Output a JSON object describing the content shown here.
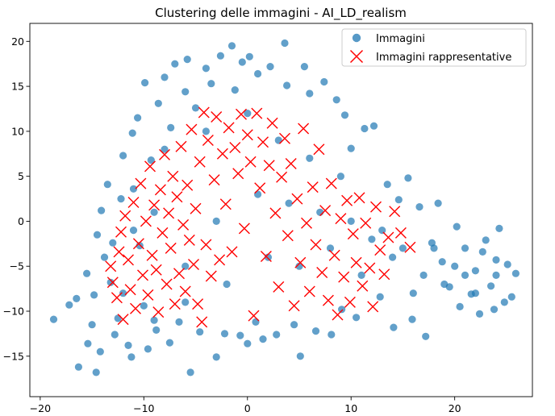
{
  "chart_data": {
    "type": "scatter",
    "title": "Clustering delle immagini - AI_LD_realism",
    "xlabel": "",
    "ylabel": "",
    "xlim": [
      -21,
      27.5
    ],
    "ylim": [
      -19.5,
      22
    ],
    "xticks": [
      -20,
      -10,
      0,
      10,
      20
    ],
    "yticks": [
      -15,
      -10,
      -5,
      0,
      5,
      10,
      15,
      20
    ],
    "grid": false,
    "legend_position": "top-right",
    "series": [
      {
        "name": "Immagini",
        "marker": "circle",
        "color": "#1f77b4",
        "description": "several thousand points in a dense arch-shaped cloud; listed points are a representative sample plus visible outliers",
        "points": [
          [
            -18.7,
            -10.9
          ],
          [
            -17.2,
            -9.3
          ],
          [
            -16.3,
            -16.2
          ],
          [
            -15.4,
            -13.6
          ],
          [
            -14.6,
            -16.8
          ],
          [
            -14.2,
            -14.5
          ],
          [
            -15,
            -11.5
          ],
          [
            -14.8,
            -8.2
          ],
          [
            -15.5,
            -5.8
          ],
          [
            -14.5,
            -1.5
          ],
          [
            -14.1,
            1.2
          ],
          [
            -13.8,
            -4
          ],
          [
            -13.5,
            4.1
          ],
          [
            -13.2,
            -6.8
          ],
          [
            -12.8,
            -12.6
          ],
          [
            -12.5,
            -10.8
          ],
          [
            -12.2,
            2.5
          ],
          [
            -12,
            7.3
          ],
          [
            -11.5,
            -13.8
          ],
          [
            -11.2,
            -15.1
          ],
          [
            -11.1,
            9.8
          ],
          [
            -11,
            3.6
          ],
          [
            -10.6,
            11.5
          ],
          [
            -10.4,
            -2.7
          ],
          [
            -10,
            -9.4
          ],
          [
            -9.9,
            15.4
          ],
          [
            -9.6,
            -14.2
          ],
          [
            -9.3,
            6.8
          ],
          [
            -8.8,
            -12.1
          ],
          [
            -8.6,
            13.1
          ],
          [
            -8,
            16
          ],
          [
            -7.5,
            -13.5
          ],
          [
            -7.4,
            10.4
          ],
          [
            -7,
            17.5
          ],
          [
            -6.6,
            -11.2
          ],
          [
            -6,
            14.4
          ],
          [
            -5.8,
            18
          ],
          [
            -5.5,
            -16.8
          ],
          [
            -5,
            12.6
          ],
          [
            -4.6,
            -12.3
          ],
          [
            -4,
            17
          ],
          [
            -3.5,
            15.3
          ],
          [
            -3,
            -15.1
          ],
          [
            -2.6,
            18.4
          ],
          [
            -2.2,
            -12.5
          ],
          [
            -1.5,
            19.5
          ],
          [
            -1.2,
            14.6
          ],
          [
            -0.7,
            -12.7
          ],
          [
            -0.5,
            17.7
          ],
          [
            0,
            -13.6
          ],
          [
            0.2,
            18.3
          ],
          [
            0.8,
            -11.2
          ],
          [
            1,
            16.4
          ],
          [
            1.5,
            -13.1
          ],
          [
            2.2,
            17.2
          ],
          [
            2.8,
            -12.6
          ],
          [
            3.6,
            19.8
          ],
          [
            3.8,
            15.1
          ],
          [
            4.5,
            -11.5
          ],
          [
            5.1,
            -15
          ],
          [
            5.5,
            17.2
          ],
          [
            6,
            14.2
          ],
          [
            6.6,
            -12.2
          ],
          [
            7.4,
            15.5
          ],
          [
            8.1,
            -12.6
          ],
          [
            8.6,
            13.5
          ],
          [
            9.1,
            -9.8
          ],
          [
            9.4,
            11.8
          ],
          [
            10,
            8.1
          ],
          [
            10.5,
            -10.7
          ],
          [
            11.3,
            10.3
          ],
          [
            12.2,
            10.6
          ],
          [
            12.8,
            -8.4
          ],
          [
            13.5,
            4.1
          ],
          [
            14.1,
            -11.8
          ],
          [
            14.6,
            2.4
          ],
          [
            15.5,
            4.8
          ],
          [
            15.9,
            -10.9
          ],
          [
            16.6,
            1.6
          ],
          [
            17.2,
            -12.8
          ],
          [
            17.8,
            -2.4
          ],
          [
            18.4,
            2
          ],
          [
            18.8,
            -4.5
          ],
          [
            19.5,
            -7.3
          ],
          [
            20.2,
            -0.6
          ],
          [
            20.5,
            -9.5
          ],
          [
            21,
            -3
          ],
          [
            21.6,
            -8.1
          ],
          [
            22,
            -5.5
          ],
          [
            22.4,
            -10.3
          ],
          [
            23,
            -2.1
          ],
          [
            23.5,
            -7.2
          ],
          [
            24,
            -4.3
          ],
          [
            24.3,
            -0.8
          ],
          [
            24.8,
            -9
          ],
          [
            25.1,
            -4.8
          ],
          [
            25.5,
            -8.4
          ],
          [
            25.9,
            -5.8
          ],
          [
            23.8,
            -9.8
          ],
          [
            22.7,
            -3.4
          ],
          [
            -16.5,
            -8.6
          ],
          [
            -13,
            -2.4
          ],
          [
            -9,
            1
          ],
          [
            -6,
            -5
          ],
          [
            -3,
            0
          ],
          [
            1,
            3
          ],
          [
            5,
            -5
          ],
          [
            8,
            -3
          ],
          [
            11,
            -6
          ],
          [
            14,
            -4
          ],
          [
            17,
            -6
          ],
          [
            20,
            -5
          ],
          [
            19,
            -7
          ],
          [
            18,
            -3
          ],
          [
            16,
            -8
          ],
          [
            12,
            -2
          ],
          [
            9,
            5
          ],
          [
            6,
            7
          ],
          [
            3,
            9
          ],
          [
            0,
            12
          ],
          [
            -4,
            10
          ],
          [
            -8,
            8
          ],
          [
            -11,
            -1
          ],
          [
            -12,
            -8
          ],
          [
            -9,
            -11
          ],
          [
            -6,
            -9
          ],
          [
            -2,
            -7
          ],
          [
            2,
            -4
          ],
          [
            4,
            2
          ],
          [
            7,
            1
          ],
          [
            10,
            0
          ],
          [
            13,
            -1
          ],
          [
            15,
            -3
          ],
          [
            21,
            -6
          ],
          [
            22,
            -8
          ],
          [
            24,
            -6
          ]
        ]
      },
      {
        "name": "Immagini rappresentative",
        "marker": "x",
        "color": "#ff0000",
        "description": "several hundred representative points; listed points are a representative sample of the visible markers",
        "points": [
          [
            -13.2,
            -5
          ],
          [
            -13,
            -6.8
          ],
          [
            -12.6,
            -8.5
          ],
          [
            -12.4,
            -3.4
          ],
          [
            -12.2,
            -1.2
          ],
          [
            -12,
            -10.9
          ],
          [
            -11.8,
            0.6
          ],
          [
            -11.5,
            -4.3
          ],
          [
            -11.3,
            -7.6
          ],
          [
            -11,
            2.1
          ],
          [
            -10.8,
            -9.7
          ],
          [
            -10.5,
            -2.5
          ],
          [
            -10.3,
            4.2
          ],
          [
            -10.1,
            -6
          ],
          [
            -9.8,
            0
          ],
          [
            -9.6,
            -8.2
          ],
          [
            -9.4,
            6.1
          ],
          [
            -9.2,
            -3.8
          ],
          [
            -9,
            1.8
          ],
          [
            -8.8,
            -5.4
          ],
          [
            -8.6,
            -10.1
          ],
          [
            -8.4,
            3.5
          ],
          [
            -8.2,
            -1.3
          ],
          [
            -8,
            7.4
          ],
          [
            -7.8,
            -7
          ],
          [
            -7.6,
            0.9
          ],
          [
            -7.4,
            -3
          ],
          [
            -7.2,
            5
          ],
          [
            -7,
            -9.2
          ],
          [
            -6.8,
            2.7
          ],
          [
            -6.6,
            -5.8
          ],
          [
            -6.4,
            8.3
          ],
          [
            -6.2,
            -0.4
          ],
          [
            -6,
            -7.8
          ],
          [
            -5.8,
            4
          ],
          [
            -5.6,
            -2.1
          ],
          [
            -5.4,
            10.2
          ],
          [
            -5.2,
            -4.8
          ],
          [
            -5,
            1.4
          ],
          [
            -4.8,
            -9.2
          ],
          [
            -4.6,
            6.6
          ],
          [
            -4.4,
            -11.2
          ],
          [
            -4.2,
            12.1
          ],
          [
            -4,
            -2.6
          ],
          [
            -3.8,
            9
          ],
          [
            -3.5,
            -6.1
          ],
          [
            -3.2,
            4.6
          ],
          [
            -3,
            11.6
          ],
          [
            -2.7,
            -4.3
          ],
          [
            -2.4,
            7.5
          ],
          [
            -2.1,
            1.9
          ],
          [
            -1.8,
            10.4
          ],
          [
            -1.5,
            -3.4
          ],
          [
            -1.2,
            8.2
          ],
          [
            -0.9,
            5.3
          ],
          [
            -0.6,
            11.9
          ],
          [
            -0.3,
            -0.8
          ],
          [
            0,
            9.6
          ],
          [
            0.3,
            6.6
          ],
          [
            0.6,
            -10.5
          ],
          [
            0.9,
            12
          ],
          [
            1.2,
            3.7
          ],
          [
            1.5,
            8.8
          ],
          [
            1.8,
            -3.9
          ],
          [
            2.1,
            6.2
          ],
          [
            2.4,
            10.9
          ],
          [
            2.7,
            0.9
          ],
          [
            3,
            -7.3
          ],
          [
            3.3,
            4.9
          ],
          [
            3.6,
            9.2
          ],
          [
            3.9,
            -1.6
          ],
          [
            4.2,
            6.4
          ],
          [
            4.5,
            -9.4
          ],
          [
            4.8,
            2.5
          ],
          [
            5.1,
            -4.6
          ],
          [
            5.4,
            10.3
          ],
          [
            5.7,
            -0.2
          ],
          [
            6,
            -7.8
          ],
          [
            6.3,
            3.8
          ],
          [
            6.6,
            -2.6
          ],
          [
            6.9,
            8
          ],
          [
            7.2,
            -5.7
          ],
          [
            7.5,
            1.2
          ],
          [
            7.8,
            -8.8
          ],
          [
            8.1,
            4.2
          ],
          [
            8.4,
            -3.8
          ],
          [
            8.7,
            -10.4
          ],
          [
            9,
            0.3
          ],
          [
            9.3,
            -6.2
          ],
          [
            9.6,
            2.3
          ],
          [
            9.9,
            -9
          ],
          [
            10.2,
            -1.4
          ],
          [
            10.5,
            -4.6
          ],
          [
            10.8,
            2.6
          ],
          [
            11.1,
            -7.2
          ],
          [
            11.4,
            -0.2
          ],
          [
            11.8,
            -5.2
          ],
          [
            12.1,
            -9.5
          ],
          [
            12.4,
            1.6
          ],
          [
            12.8,
            -3.2
          ],
          [
            13.2,
            -5.9
          ],
          [
            13.6,
            -1.8
          ],
          [
            14.2,
            1.1
          ],
          [
            14.8,
            -1.3
          ],
          [
            15.7,
            -2.9
          ]
        ]
      }
    ]
  }
}
